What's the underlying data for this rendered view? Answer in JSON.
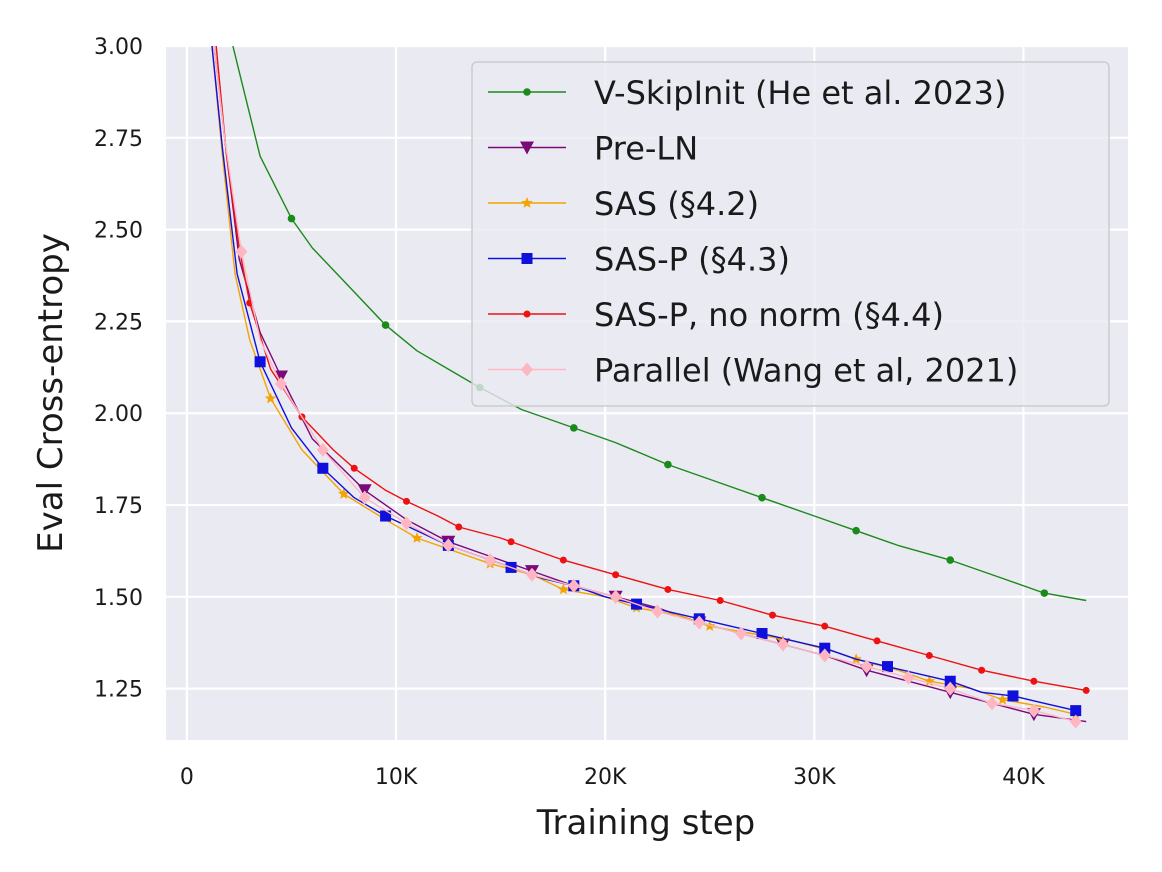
{
  "chart_data": {
    "type": "line",
    "title": "",
    "xlabel": "Training step",
    "ylabel": "Eval Cross-entropy",
    "xlim": [
      -1000,
      45000
    ],
    "ylim": [
      1.11,
      3.0
    ],
    "xticks": [
      0,
      10000,
      20000,
      30000,
      40000
    ],
    "xtick_labels": [
      "0",
      "10K",
      "20K",
      "30K",
      "40K"
    ],
    "yticks": [
      1.25,
      1.5,
      1.75,
      2.0,
      2.25,
      2.5,
      2.75,
      3.0
    ],
    "ytick_labels": [
      "1.25",
      "1.50",
      "1.75",
      "2.00",
      "2.25",
      "2.50",
      "2.75",
      "3.00"
    ],
    "grid": true,
    "legend_position": "top-right",
    "series": [
      {
        "name": "V-SkipInit (He et al. 2023)",
        "color": "#1a8a1a",
        "marker": "circle",
        "x": [
          2200,
          2500,
          3500,
          5000,
          6000,
          7500,
          9500,
          11000,
          12500,
          14000,
          16000,
          18500,
          20500,
          23000,
          25500,
          27500,
          30000,
          32000,
          34000,
          36500,
          39000,
          41000,
          43000
        ],
        "y": [
          3.0,
          2.93,
          2.7,
          2.53,
          2.45,
          2.36,
          2.24,
          2.17,
          2.12,
          2.07,
          2.01,
          1.96,
          1.92,
          1.86,
          1.81,
          1.77,
          1.72,
          1.68,
          1.64,
          1.6,
          1.55,
          1.51,
          1.49
        ],
        "markers_x": [
          5000,
          9500,
          14000,
          18500,
          23000,
          27500,
          32000,
          36500,
          41000
        ],
        "markers_y": [
          2.53,
          2.24,
          2.07,
          1.96,
          1.86,
          1.77,
          1.68,
          1.6,
          1.51
        ]
      },
      {
        "name": "Pre-LN",
        "color": "#7a0a7a",
        "marker": "triangle-down",
        "x": [
          1300,
          1800,
          2500,
          3500,
          4500,
          6000,
          8500,
          10500,
          12500,
          14500,
          16500,
          18500,
          20500,
          22500,
          24500,
          26500,
          28500,
          30500,
          32500,
          34500,
          36500,
          38500,
          40500,
          43000
        ],
        "y": [
          3.0,
          2.75,
          2.42,
          2.22,
          2.1,
          1.93,
          1.79,
          1.71,
          1.65,
          1.61,
          1.57,
          1.53,
          1.5,
          1.47,
          1.43,
          1.4,
          1.37,
          1.34,
          1.3,
          1.27,
          1.24,
          1.21,
          1.18,
          1.16
        ],
        "markers_x": [
          4500,
          8500,
          12500,
          16500,
          20500,
          24500,
          28500,
          32500,
          36500,
          40500
        ],
        "markers_y": [
          2.1,
          1.79,
          1.65,
          1.57,
          1.5,
          1.43,
          1.37,
          1.3,
          1.24,
          1.18
        ]
      },
      {
        "name": "SAS (§4.2)",
        "color": "#f5a300",
        "marker": "star",
        "x": [
          1200,
          1700,
          2300,
          3000,
          4000,
          5500,
          7500,
          9500,
          11000,
          13000,
          14500,
          16500,
          18000,
          20000,
          21500,
          23500,
          25000,
          27000,
          29000,
          31000,
          32000,
          34000,
          35500,
          37500,
          39000,
          41000,
          42500
        ],
        "y": [
          3.0,
          2.7,
          2.38,
          2.2,
          2.04,
          1.9,
          1.78,
          1.71,
          1.66,
          1.62,
          1.59,
          1.56,
          1.52,
          1.5,
          1.47,
          1.45,
          1.42,
          1.4,
          1.38,
          1.35,
          1.33,
          1.3,
          1.27,
          1.25,
          1.22,
          1.2,
          1.18
        ],
        "markers_x": [
          4000,
          7500,
          11000,
          14500,
          18000,
          21500,
          25000,
          28500,
          32000,
          35500,
          39000,
          42500
        ],
        "markers_y": [
          2.04,
          1.78,
          1.66,
          1.59,
          1.52,
          1.47,
          1.42,
          1.38,
          1.33,
          1.27,
          1.22,
          1.18
        ]
      },
      {
        "name": "SAS-P (§4.3)",
        "color": "#1010dd",
        "marker": "square",
        "x": [
          1200,
          1700,
          2400,
          3500,
          5000,
          6500,
          8000,
          9500,
          11000,
          12500,
          14000,
          15500,
          17000,
          18500,
          20000,
          21500,
          23000,
          24500,
          26000,
          27500,
          29000,
          30500,
          32000,
          33500,
          35000,
          36500,
          38000,
          39500,
          41000,
          42500
        ],
        "y": [
          3.0,
          2.72,
          2.38,
          2.14,
          1.96,
          1.85,
          1.77,
          1.72,
          1.68,
          1.64,
          1.61,
          1.58,
          1.55,
          1.53,
          1.5,
          1.48,
          1.46,
          1.44,
          1.42,
          1.4,
          1.38,
          1.36,
          1.33,
          1.31,
          1.29,
          1.27,
          1.24,
          1.23,
          1.21,
          1.19
        ],
        "markers_x": [
          3500,
          6500,
          9500,
          12500,
          15500,
          18500,
          21500,
          24500,
          27500,
          30500,
          33500,
          36500,
          39500,
          42500
        ],
        "markers_y": [
          2.14,
          1.85,
          1.72,
          1.64,
          1.58,
          1.53,
          1.48,
          1.44,
          1.4,
          1.36,
          1.31,
          1.27,
          1.23,
          1.19
        ]
      },
      {
        "name": "SAS-P, no norm (§4.4)",
        "color": "#ee1111",
        "marker": "circle",
        "x": [
          1400,
          1900,
          2500,
          3000,
          4000,
          5500,
          7000,
          8000,
          9500,
          10500,
          12000,
          13000,
          15000,
          16000,
          18000,
          20500,
          23000,
          25500,
          28000,
          30500,
          33000,
          35500,
          38000,
          40500,
          43000
        ],
        "y": [
          3.0,
          2.7,
          2.45,
          2.3,
          2.12,
          1.99,
          1.9,
          1.85,
          1.79,
          1.76,
          1.72,
          1.69,
          1.66,
          1.64,
          1.6,
          1.56,
          1.52,
          1.49,
          1.45,
          1.42,
          1.38,
          1.34,
          1.3,
          1.27,
          1.245
        ],
        "markers_x": [
          3000,
          5500,
          8000,
          10500,
          13000,
          15500,
          18000,
          20500,
          23000,
          25500,
          28000,
          30500,
          33000,
          35500,
          38000,
          40500,
          43000
        ],
        "markers_y": [
          2.3,
          1.99,
          1.85,
          1.76,
          1.69,
          1.65,
          1.6,
          1.56,
          1.52,
          1.49,
          1.45,
          1.42,
          1.38,
          1.34,
          1.3,
          1.27,
          1.245
        ],
        "marker_size_small": true
      },
      {
        "name": "Parallel (Wang et al, 2021)",
        "color": "#ffb6c1",
        "marker": "diamond",
        "x": [
          1300,
          1800,
          2600,
          3500,
          4500,
          6500,
          8500,
          10500,
          12500,
          14500,
          16500,
          18500,
          20500,
          22500,
          24500,
          26500,
          28500,
          30500,
          32500,
          34500,
          36500,
          38500,
          40500,
          42500
        ],
        "y": [
          3.0,
          2.75,
          2.44,
          2.2,
          2.08,
          1.9,
          1.77,
          1.7,
          1.64,
          1.6,
          1.56,
          1.53,
          1.5,
          1.46,
          1.43,
          1.4,
          1.37,
          1.34,
          1.31,
          1.28,
          1.25,
          1.21,
          1.19,
          1.16
        ],
        "markers_x": [
          2600,
          4500,
          6500,
          8500,
          10500,
          12500,
          14500,
          16500,
          18500,
          20500,
          22500,
          24500,
          26500,
          28500,
          30500,
          32500,
          34500,
          36500,
          38500,
          40500,
          42500
        ],
        "markers_y": [
          2.44,
          2.08,
          1.9,
          1.77,
          1.7,
          1.64,
          1.6,
          1.56,
          1.53,
          1.5,
          1.46,
          1.43,
          1.4,
          1.37,
          1.34,
          1.31,
          1.28,
          1.25,
          1.21,
          1.19,
          1.16
        ]
      }
    ]
  }
}
